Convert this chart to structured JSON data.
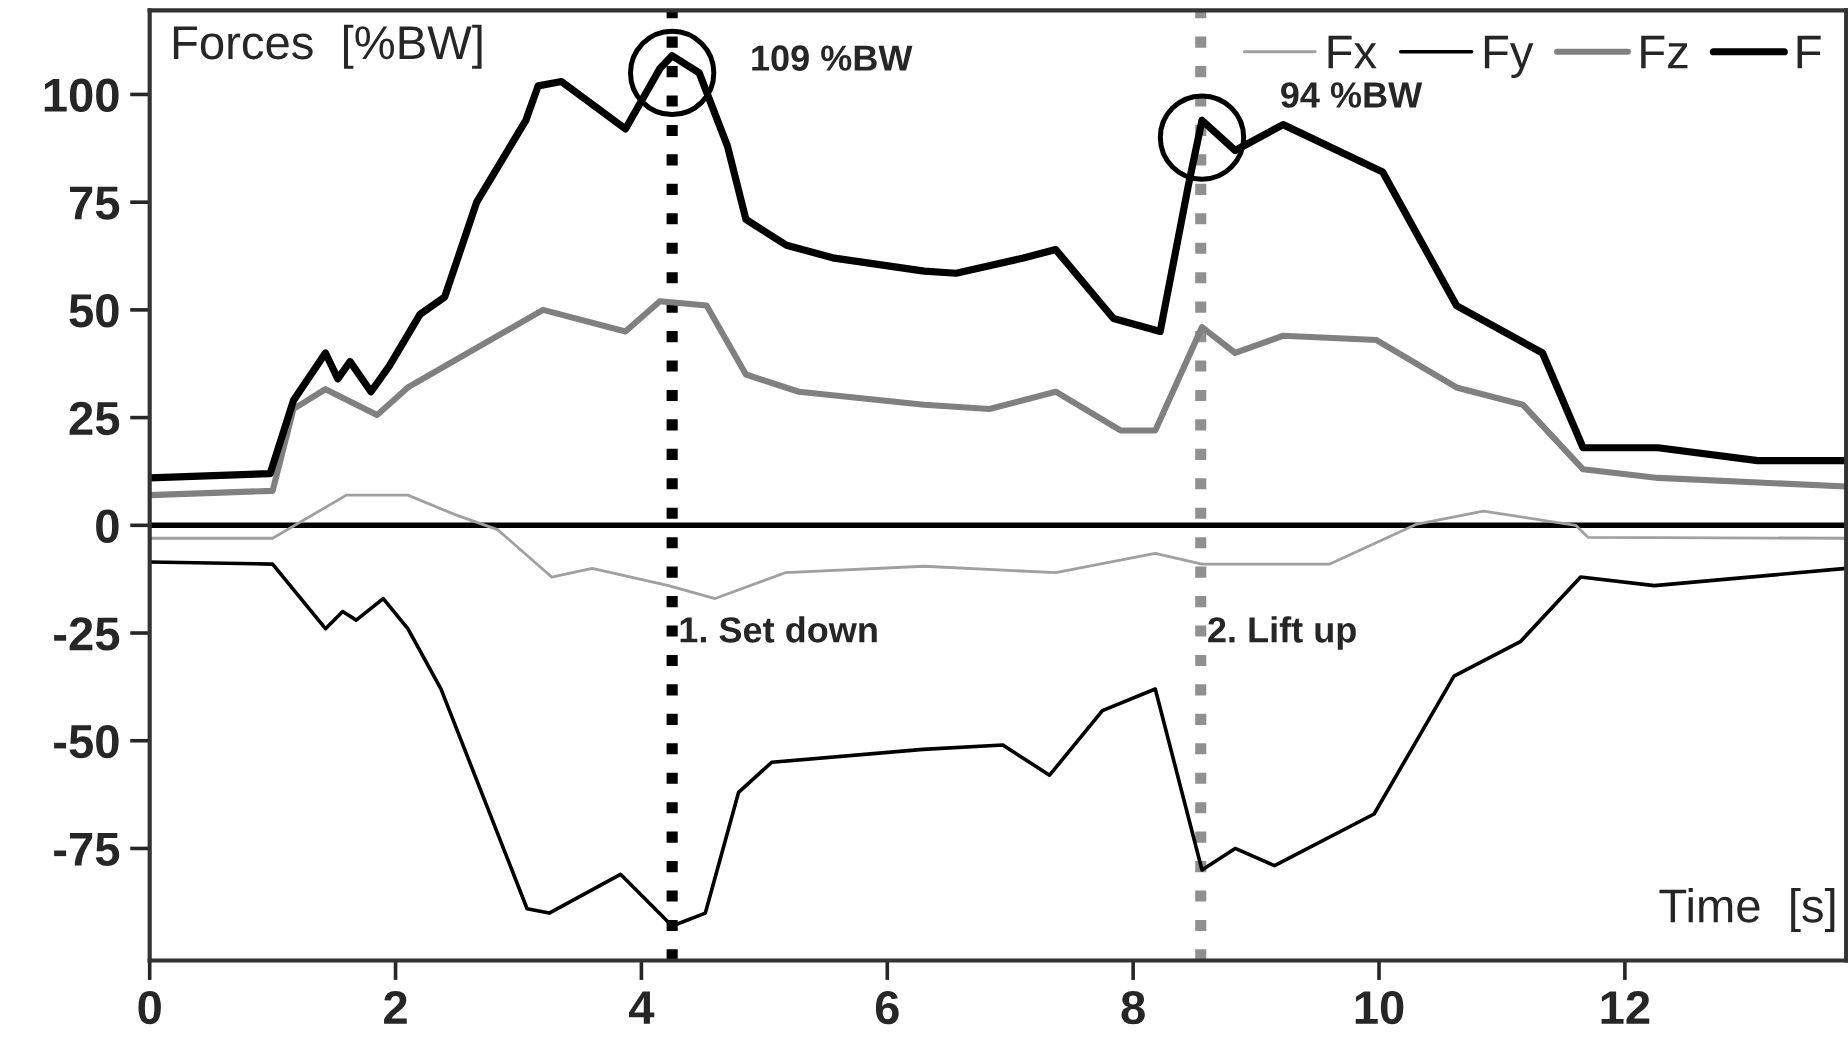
{
  "chart_data": {
    "type": "line",
    "ylabel": "Forces  [%BW]",
    "xlabel": "Time  [s]",
    "xlim": [
      0,
      13.8
    ],
    "ylim": [
      -101,
      119.5
    ],
    "xticks": [
      0,
      2,
      4,
      6,
      8,
      10,
      12
    ],
    "yticks": [
      -75,
      -50,
      -25,
      0,
      25,
      50,
      75,
      100
    ],
    "grid": false,
    "legend": "top right",
    "line_style": "solid",
    "marker": "none",
    "series": [
      {
        "name": "Fx",
        "color": "#a0a0a0",
        "x": [
          0,
          1.0,
          1.6,
          2.1,
          2.5,
          2.83,
          3.27,
          3.6,
          4.22,
          4.6,
          5.17,
          6.3,
          7.37,
          8.18,
          8.56,
          9.08,
          9.6,
          10.3,
          10.85,
          11.6,
          11.7,
          13.8
        ],
        "values": [
          -3,
          -3,
          7,
          7,
          2.3,
          -1,
          -12,
          -10,
          -14,
          -17,
          -11,
          -9.5,
          -11,
          -6.5,
          -9,
          -9,
          -9,
          0.2,
          3.3,
          0,
          -2.8,
          -3
        ]
      },
      {
        "name": "Fy",
        "color": "#000000",
        "x": [
          0,
          1.0,
          1.43,
          1.57,
          1.68,
          1.9,
          2.1,
          2.37,
          3.07,
          3.25,
          3.83,
          4.25,
          4.52,
          4.79,
          5.06,
          6.29,
          6.94,
          7.32,
          7.75,
          8.18,
          8.56,
          8.83,
          9.15,
          9.96,
          10.61,
          11.15,
          11.64,
          12.24,
          13.8
        ],
        "values": [
          -8.5,
          -9,
          -24,
          -20,
          -22,
          -17,
          -24,
          -38,
          -89,
          -90,
          -81,
          -93,
          -90,
          -62,
          -55,
          -52,
          -51,
          -58,
          -43,
          -38,
          -80,
          -75,
          -79,
          -67,
          -35,
          -27,
          -12,
          -14,
          -10
        ]
      },
      {
        "name": "Fz",
        "color": "#808080",
        "x": [
          0,
          1.0,
          1.17,
          1.43,
          1.85,
          2.1,
          3.2,
          3.87,
          4.15,
          4.53,
          4.85,
          5.28,
          6.3,
          6.83,
          7.37,
          7.9,
          8.18,
          8.56,
          8.83,
          9.22,
          9.98,
          10.63,
          11.17,
          11.66,
          12.27,
          13.8
        ],
        "values": [
          7,
          8,
          27,
          31.6,
          25.6,
          32,
          50,
          45,
          52,
          51,
          35,
          31,
          28,
          27,
          31,
          22,
          22,
          46,
          40,
          44,
          43,
          32,
          28,
          13,
          11,
          9
        ]
      },
      {
        "name": "F",
        "color": "#000000",
        "x": [
          0,
          0.98,
          1.17,
          1.43,
          1.53,
          1.63,
          1.8,
          1.95,
          2.2,
          2.4,
          2.66,
          3.06,
          3.16,
          3.35,
          3.87,
          4.15,
          4.25,
          4.47,
          4.7,
          4.85,
          5.18,
          5.57,
          6.3,
          6.56,
          7.1,
          7.37,
          7.84,
          8.22,
          8.45,
          8.56,
          8.83,
          9.22,
          10.03,
          10.63,
          11.33,
          11.66,
          12.27,
          13.08,
          13.8
        ],
        "values": [
          11,
          12,
          29,
          40,
          34,
          38,
          31,
          37,
          49,
          53,
          75,
          94,
          102,
          103,
          92,
          106,
          109,
          105,
          88,
          71,
          65,
          62,
          59,
          58.5,
          62,
          64,
          48,
          45,
          79,
          94,
          87,
          93,
          82,
          51,
          40,
          18,
          18,
          15,
          15
        ]
      }
    ],
    "ref_lines": [
      {
        "axis": "y",
        "value": 0,
        "color": "#000000",
        "line_style": "solid"
      },
      {
        "axis": "x",
        "value": 4.25,
        "label": "1. Set down",
        "color": "#000000",
        "line_style": "dotted"
      },
      {
        "axis": "x",
        "value": 8.55,
        "label": "2. Lift up",
        "color": "#909090",
        "line_style": "dotted"
      }
    ],
    "annotations": [
      {
        "text": "109 %BW",
        "x": 4.25,
        "y": 109
      },
      {
        "text": "94 %BW",
        "x": 8.56,
        "y": 94
      }
    ]
  }
}
